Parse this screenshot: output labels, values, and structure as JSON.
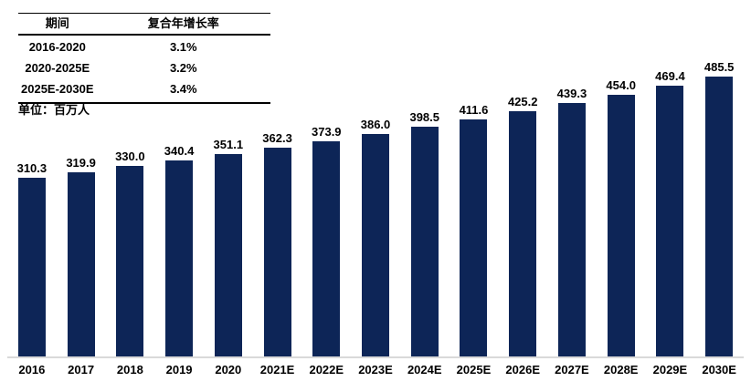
{
  "table": {
    "headers": {
      "period": "期间",
      "cagr": "复合年增长率"
    },
    "rows": [
      {
        "period": "2016-2020",
        "cagr": "3.1%"
      },
      {
        "period": "2020-2025E",
        "cagr": "3.2%"
      },
      {
        "period": "2025E-2030E",
        "cagr": "3.4%"
      }
    ]
  },
  "unit_label": "单位：百万人",
  "colors": {
    "bar": "#0d2557",
    "baseline": "#d9d9d9",
    "text": "#000000"
  },
  "chart_data": {
    "type": "bar",
    "title": "",
    "xlabel": "",
    "ylabel": "单位：百万人",
    "categories": [
      "2016",
      "2017",
      "2018",
      "2019",
      "2020",
      "2021E",
      "2022E",
      "2023E",
      "2024E",
      "2025E",
      "2026E",
      "2027E",
      "2028E",
      "2029E",
      "2030E"
    ],
    "values": [
      310.3,
      319.9,
      330.0,
      340.4,
      351.1,
      362.3,
      373.9,
      386.0,
      398.5,
      411.6,
      425.2,
      439.3,
      454.0,
      469.4,
      485.5
    ],
    "ylim": [
      0,
      500
    ],
    "grid": false,
    "legend": "none",
    "annotations": {
      "cagr_2016_2020": "3.1%",
      "cagr_2020_2025E": "3.2%",
      "cagr_2025E_2030E": "3.4%"
    }
  }
}
